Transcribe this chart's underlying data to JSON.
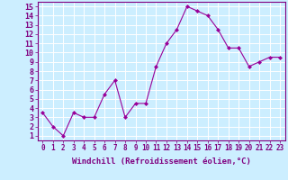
{
  "x": [
    0,
    1,
    2,
    3,
    4,
    5,
    6,
    7,
    8,
    9,
    10,
    11,
    12,
    13,
    14,
    15,
    16,
    17,
    18,
    19,
    20,
    21,
    22,
    23
  ],
  "y": [
    3.5,
    2.0,
    1.0,
    3.5,
    3.0,
    3.0,
    5.5,
    7.0,
    3.0,
    4.5,
    4.5,
    8.5,
    11.0,
    12.5,
    15.0,
    14.5,
    14.0,
    12.5,
    10.5,
    10.5,
    8.5,
    9.0,
    9.5,
    9.5
  ],
  "line_color": "#990099",
  "marker": "D",
  "marker_size": 2.0,
  "xlabel": "Windchill (Refroidissement éolien,°C)",
  "xlim": [
    -0.5,
    23.5
  ],
  "ylim": [
    0.5,
    15.5
  ],
  "yticks": [
    1,
    2,
    3,
    4,
    5,
    6,
    7,
    8,
    9,
    10,
    11,
    12,
    13,
    14,
    15
  ],
  "xticks": [
    0,
    1,
    2,
    3,
    4,
    5,
    6,
    7,
    8,
    9,
    10,
    11,
    12,
    13,
    14,
    15,
    16,
    17,
    18,
    19,
    20,
    21,
    22,
    23
  ],
  "bg_color": "#cceeff",
  "grid_color": "#ffffff",
  "line_purple": "#800080",
  "xlabel_fontsize": 6.5,
  "ytick_fontsize": 6.0,
  "xtick_fontsize": 5.5
}
